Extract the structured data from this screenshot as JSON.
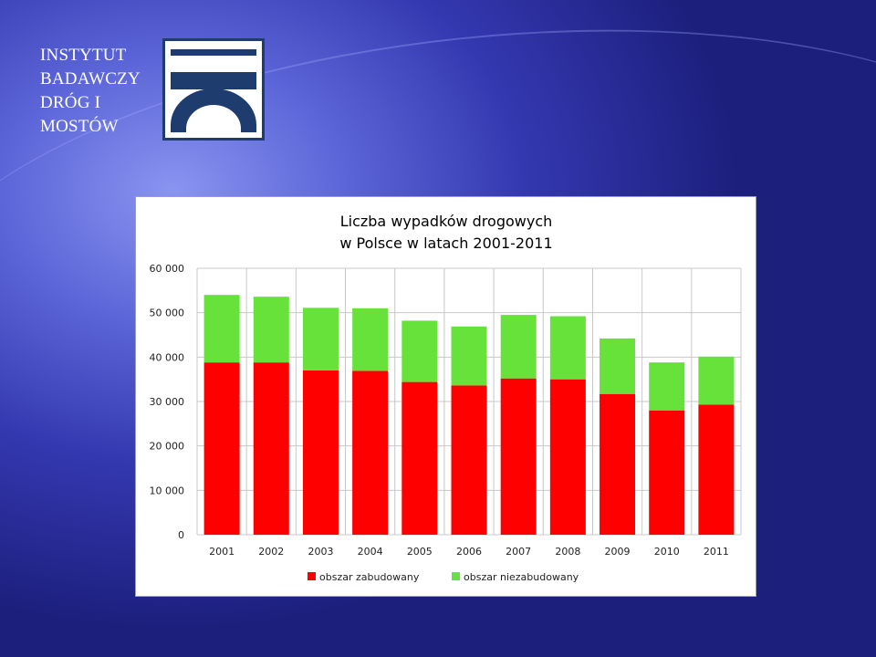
{
  "institute": {
    "name_lines": [
      "INSTYTUT",
      "BADAWCZY",
      "DRÓG I",
      "MOSTÓW"
    ]
  },
  "colors": {
    "logo_navy": "#1e3d6e",
    "series_built": "#ff0000",
    "series_nonbuilt": "#66e23a",
    "grid": "#c8c8c8"
  },
  "chart_data": {
    "type": "bar",
    "stacked": true,
    "title_lines": [
      "Liczba wypadków drogowych",
      "w Polsce w latach 2001-2011"
    ],
    "categories": [
      "2001",
      "2002",
      "2003",
      "2004",
      "2005",
      "2006",
      "2007",
      "2008",
      "2009",
      "2010",
      "2011"
    ],
    "series": [
      {
        "name": "obszar zabudowany",
        "color": "#ff0000",
        "values": [
          38800,
          38800,
          37000,
          36900,
          34400,
          33600,
          35200,
          35000,
          31700,
          28000,
          29300
        ]
      },
      {
        "name": "obszar niezabudowany",
        "color": "#66e23a",
        "values": [
          15200,
          14800,
          14100,
          14100,
          13800,
          13300,
          14300,
          14200,
          12500,
          10800,
          10800
        ]
      }
    ],
    "ylim": [
      0,
      60000
    ],
    "yticks": [
      0,
      10000,
      20000,
      30000,
      40000,
      50000,
      60000
    ],
    "ytick_labels": [
      "0",
      "10 000",
      "20 000",
      "30 000",
      "40 000",
      "50 000",
      "60 000"
    ],
    "grid": true,
    "legend_position": "bottom"
  }
}
